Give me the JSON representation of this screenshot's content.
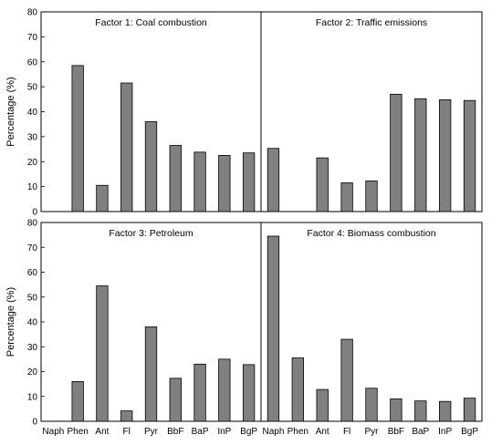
{
  "chart_data": {
    "type": "bar",
    "categories": [
      "Naph",
      "Phen",
      "Ant",
      "Fl",
      "Pyr",
      "BbF",
      "BaP",
      "InP",
      "BgP"
    ],
    "panels": [
      {
        "title": "Factor 1: Coal combustion",
        "ylabel": "Percentage (%)",
        "ylim": [
          0,
          80
        ],
        "yticks": [
          0,
          10,
          20,
          30,
          40,
          50,
          60,
          70,
          80
        ],
        "values": [
          0,
          58.5,
          10.5,
          51.5,
          36,
          26.5,
          23.8,
          22.5,
          23.5
        ]
      },
      {
        "title": "Factor 2: Traffic emissions",
        "ylabel": "",
        "ylim": [
          0,
          80
        ],
        "yticks": [],
        "values": [
          25.3,
          0,
          21.5,
          11.5,
          12.3,
          47,
          45.2,
          44.8,
          44.5
        ]
      },
      {
        "title": "Factor 3: Petroleum",
        "ylabel": "Percentage (%)",
        "ylim": [
          0,
          80
        ],
        "yticks": [
          0,
          10,
          20,
          30,
          40,
          50,
          60,
          70,
          80
        ],
        "values": [
          0,
          16,
          54.5,
          4.2,
          38,
          17.3,
          23,
          25,
          22.8
        ]
      },
      {
        "title": "Factor 4: Biomass combustion",
        "ylabel": "",
        "ylim": [
          0,
          80
        ],
        "yticks": [],
        "values": [
          74.5,
          25.5,
          12.8,
          33,
          13.3,
          9,
          8.2,
          8,
          9.3
        ]
      }
    ]
  }
}
